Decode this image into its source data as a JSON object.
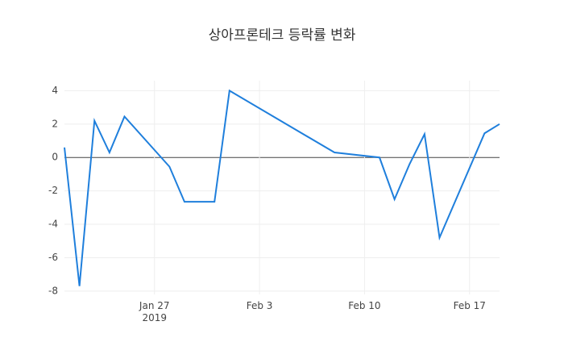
{
  "chart_data": {
    "type": "line",
    "title": "상아프론테크 등락률 변화",
    "x": [
      "2019-01-21",
      "2019-01-22",
      "2019-01-23",
      "2019-01-24",
      "2019-01-25",
      "2019-01-28",
      "2019-01-29",
      "2019-01-30",
      "2019-01-31",
      "2019-02-01",
      "2019-02-08",
      "2019-02-11",
      "2019-02-12",
      "2019-02-13",
      "2019-02-14",
      "2019-02-15",
      "2019-02-18",
      "2019-02-19"
    ],
    "series": [
      {
        "name": "등락률",
        "color": "#1f7fdc",
        "values": [
          0.6,
          -7.7,
          2.2,
          0.3,
          2.45,
          -0.55,
          -2.65,
          -2.65,
          -2.65,
          4.0,
          0.3,
          0.0,
          -2.5,
          -0.4,
          1.4,
          -4.8,
          1.45,
          2.0
        ]
      }
    ],
    "xlim": [
      "2019-01-21",
      "2019-02-19"
    ],
    "xticks": [
      {
        "value": "2019-01-27",
        "label": "Jan 27\n2019"
      },
      {
        "value": "2019-02-03",
        "label": "Feb 3"
      },
      {
        "value": "2019-02-10",
        "label": "Feb 10"
      },
      {
        "value": "2019-02-17",
        "label": "Feb 17"
      }
    ],
    "ylim": [
      -8.2,
      4.6
    ],
    "yticks": [
      -8,
      -6,
      -4,
      -2,
      0,
      2,
      4
    ],
    "grid": true,
    "zeroline": "#444444"
  }
}
